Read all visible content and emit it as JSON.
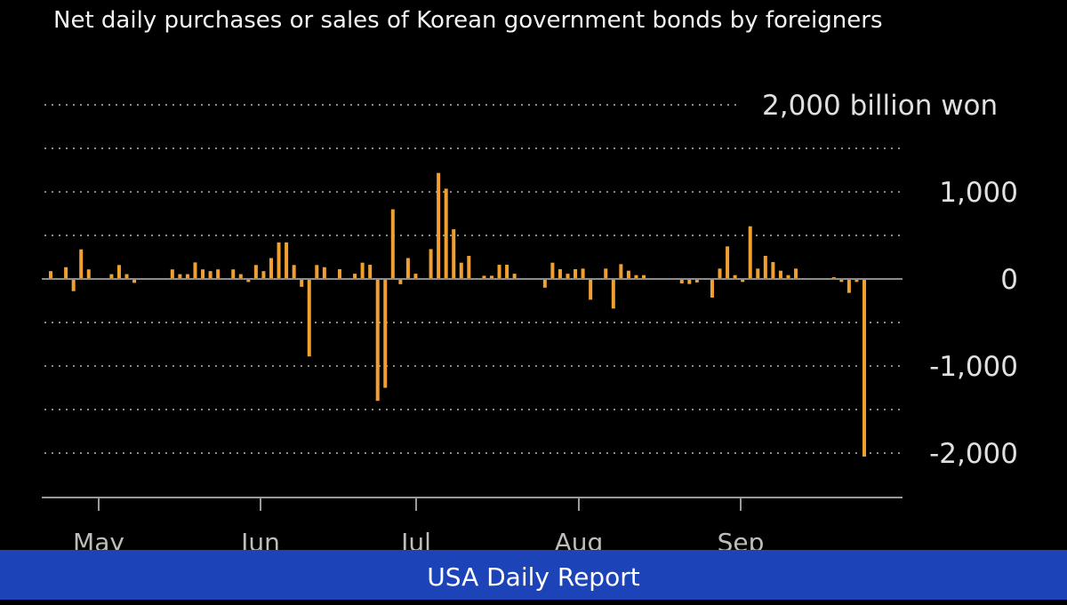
{
  "chart_data": {
    "type": "bar",
    "title": "Net daily purchases or sales of Korean government bonds by foreigners",
    "ylabel": "",
    "unit": "billion won",
    "ylim": [
      -2500,
      2000
    ],
    "yticks": [
      2000,
      1000,
      0,
      -1000,
      -2000
    ],
    "ytick_labels": [
      "2,000 billion won",
      "1,000",
      "0",
      "-1,000",
      "-2,000"
    ],
    "xtick_labels": [
      "May",
      "Jun",
      "Jul",
      "Aug",
      "Sep"
    ],
    "grid": true,
    "bar_color": "#f0a032",
    "values": [
      90,
      10,
      135,
      -140,
      340,
      110,
      10,
      10,
      55,
      160,
      55,
      -45,
      5,
      5,
      5,
      5,
      110,
      55,
      55,
      190,
      110,
      90,
      110,
      -10,
      110,
      55,
      -35,
      160,
      90,
      240,
      420,
      420,
      160,
      -90,
      -890,
      160,
      135,
      10,
      112,
      -5,
      60,
      187,
      163,
      -1400,
      -1250,
      800,
      -60,
      240,
      60,
      -5,
      343,
      1218,
      1037,
      571,
      187,
      265,
      -10,
      37,
      37,
      163,
      163,
      60,
      -5,
      -5,
      -5,
      -100,
      187,
      112,
      60,
      112,
      119,
      -238,
      5,
      119,
      -340,
      170,
      95,
      44,
      44,
      0,
      0,
      0,
      0,
      -51,
      -58,
      -40,
      -10,
      -214,
      119,
      374,
      44,
      -34,
      605,
      119,
      265,
      194,
      95,
      44,
      119,
      0,
      0,
      0,
      0,
      20,
      -34,
      -160,
      -34,
      -2040
    ]
  },
  "footer": {
    "label": "USA Daily Report",
    "color": "#1c44b8"
  }
}
